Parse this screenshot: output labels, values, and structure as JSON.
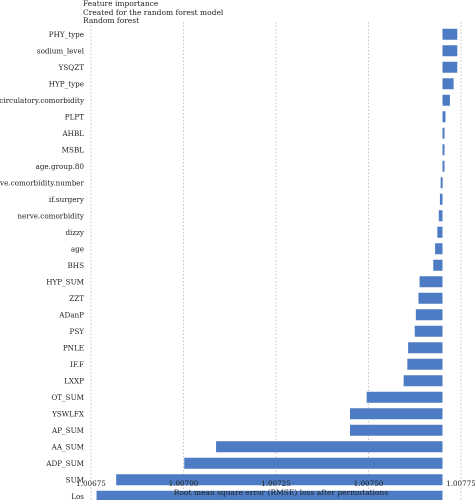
{
  "header": {
    "title": "Feature importance",
    "subtitle": "Created for the random forest model",
    "model_name": "Random forest"
  },
  "chart_data": {
    "type": "bar",
    "orientation": "horizontal",
    "title": "Feature importance",
    "subtitle": "Created for the random forest model",
    "xlabel": "Root mean square error (RMSE) loss after permutations",
    "ylabel": "",
    "grid": "vertical dotted",
    "bar_color": "#4e7cc4",
    "baseline": 1.0077,
    "xlim": [
      1.00675,
      1.00775
    ],
    "xticks": [
      "1.00675",
      "1.00700",
      "1.00725",
      "1.00750",
      "1.00775"
    ],
    "tick_values": [
      1.00675,
      1.007,
      1.00725,
      1.0075,
      1.00775
    ],
    "categories": [
      "PHY_type",
      "sodium_level",
      "YSQZT",
      "HYP_type",
      "circulatory.comorbidity",
      "PLPT",
      "AHBL",
      "MSBL",
      "age.group.80",
      "nerve.comorbidity.number",
      "if.surgery",
      "nerve.comorbidity",
      "dizzy",
      "age",
      "BHS",
      "HYP_SUM",
      "ZZT",
      "ADanP",
      "PSY",
      "PNLE",
      "IF.F",
      "LXXP",
      "OT_SUM",
      "YSWLFX",
      "AP_SUM",
      "AA_SUM",
      "ADP_SUM",
      "SUM",
      "Los"
    ],
    "values": [
      1.00774,
      1.00774,
      1.00774,
      1.00773,
      1.00772,
      1.007708,
      1.007704,
      1.007702,
      1.0077,
      1.007695,
      1.007693,
      1.00769,
      1.007686,
      1.00768,
      1.007675,
      1.007638,
      1.007635,
      1.007628,
      1.007625,
      1.007607,
      1.007605,
      1.007595,
      1.007495,
      1.00745,
      1.00745,
      1.007088,
      1.007002,
      1.006818,
      1.006765
    ]
  }
}
